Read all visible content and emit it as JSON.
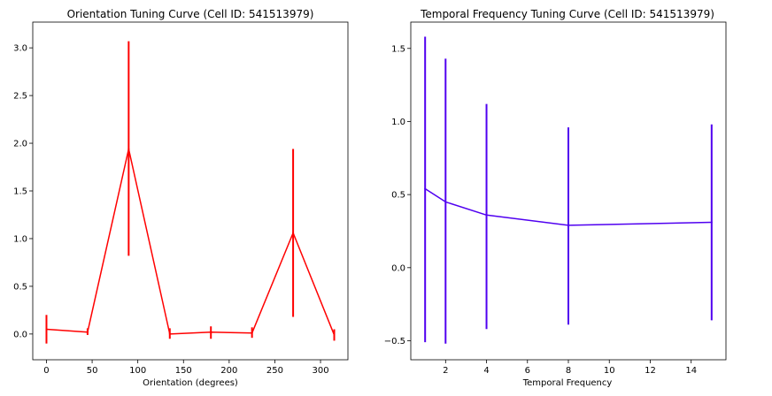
{
  "chart_data": [
    {
      "type": "line",
      "title": "Orientation Tuning Curve (Cell ID: 541513979)",
      "xlabel": "Orientation (degrees)",
      "ylabel": "",
      "xlim": [
        -15,
        330
      ],
      "ylim": [
        -0.27,
        3.27
      ],
      "xticks": [
        0,
        50,
        100,
        150,
        200,
        250,
        300
      ],
      "yticks": [
        0.0,
        0.5,
        1.0,
        1.5,
        2.0,
        2.5,
        3.0
      ],
      "xtick_labels": [
        "0",
        "50",
        "100",
        "150",
        "200",
        "250",
        "300"
      ],
      "ytick_labels": [
        "0.0",
        "0.5",
        "1.0",
        "1.5",
        "2.0",
        "2.5",
        "3.0"
      ],
      "grid": false,
      "color": "#ff0000",
      "series": [
        {
          "x": [
            0,
            45,
            90,
            135,
            180,
            225,
            270,
            315
          ],
          "y": [
            0.05,
            0.02,
            1.94,
            0.0,
            0.02,
            0.01,
            1.06,
            -0.01
          ],
          "err_low": [
            -0.1,
            -0.01,
            0.82,
            -0.05,
            -0.05,
            -0.04,
            0.18,
            -0.07
          ],
          "err_high": [
            0.2,
            0.06,
            3.07,
            0.06,
            0.08,
            0.07,
            1.94,
            0.05
          ]
        }
      ]
    },
    {
      "type": "line",
      "title": "Temporal Frequency Tuning Curve (Cell ID: 541513979)",
      "xlabel": "Temporal Frequency",
      "ylabel": "",
      "xlim": [
        0.3,
        15.7
      ],
      "ylim": [
        -0.63,
        1.68
      ],
      "xticks": [
        2,
        4,
        6,
        8,
        10,
        12,
        14
      ],
      "yticks": [
        -0.5,
        0.0,
        0.5,
        1.0,
        1.5
      ],
      "xtick_labels": [
        "2",
        "4",
        "6",
        "8",
        "10",
        "12",
        "14"
      ],
      "ytick_labels": [
        "−0.5",
        "0.0",
        "0.5",
        "1.0",
        "1.5"
      ],
      "grid": false,
      "color": "#5000f0",
      "series": [
        {
          "x": [
            1,
            2,
            4,
            8,
            15
          ],
          "y": [
            0.54,
            0.45,
            0.36,
            0.29,
            0.31
          ],
          "err_low": [
            -0.51,
            -0.52,
            -0.42,
            -0.39,
            -0.36
          ],
          "err_high": [
            1.58,
            1.43,
            1.12,
            0.96,
            0.98
          ]
        }
      ]
    }
  ]
}
